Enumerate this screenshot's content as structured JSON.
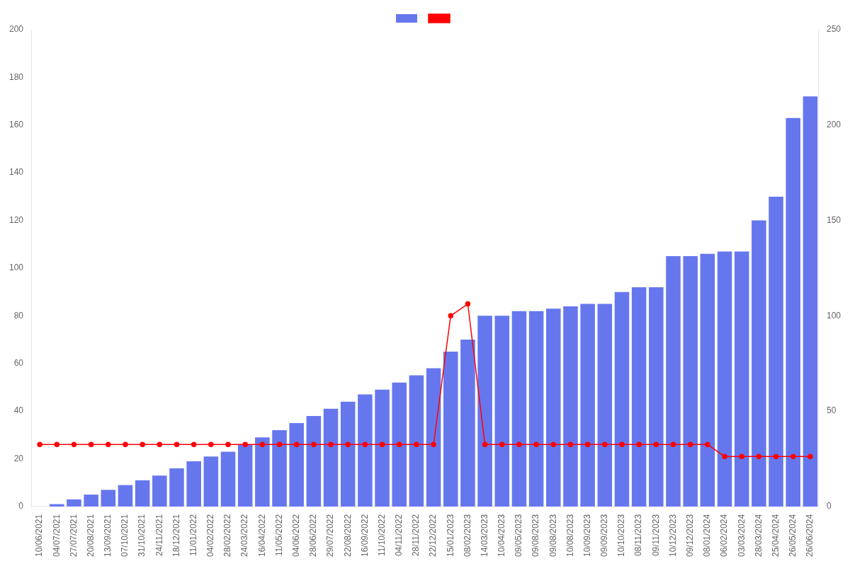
{
  "chart_data": {
    "type": "bar",
    "categories": [
      "10/06/2021",
      "04/07/2021",
      "27/07/2021",
      "20/08/2021",
      "13/09/2021",
      "07/10/2021",
      "31/10/2021",
      "24/11/2021",
      "18/12/2021",
      "11/01/2022",
      "04/02/2022",
      "28/02/2022",
      "24/03/2022",
      "16/04/2022",
      "11/05/2022",
      "04/06/2022",
      "28/06/2022",
      "29/07/2022",
      "22/08/2022",
      "16/09/2022",
      "11/10/2022",
      "04/11/2022",
      "28/11/2022",
      "22/12/2022",
      "15/01/2023",
      "08/02/2023",
      "14/03/2023",
      "10/04/2023",
      "09/05/2023",
      "09/08/2023",
      "09/08/2023",
      "10/08/2023",
      "10/09/2023",
      "09/09/2023",
      "10/10/2023",
      "08/11/2023",
      "09/11/2023",
      "10/12/2023",
      "09/12/2023",
      "08/01/2024",
      "06/02/2024",
      "03/03/2024",
      "28/03/2024",
      "25/04/2024",
      "26/05/2024",
      "26/06/2024"
    ],
    "series": [
      {
        "type": "bar",
        "color": "#6677ee",
        "values": [
          0,
          1,
          3,
          5,
          7,
          9,
          11,
          13,
          16,
          19,
          21,
          23,
          26,
          29,
          32,
          35,
          38,
          41,
          44,
          47,
          49,
          52,
          55,
          58,
          65,
          70,
          80,
          80,
          82,
          82,
          83,
          84,
          85,
          85,
          90,
          92,
          92,
          105,
          105,
          106,
          107,
          107,
          120,
          130,
          163,
          172
        ]
      },
      {
        "type": "line",
        "color": "#ff0000",
        "marker": "circle",
        "values": [
          26,
          26,
          26,
          26,
          26,
          26,
          26,
          26,
          26,
          26,
          26,
          26,
          26,
          26,
          26,
          26,
          26,
          26,
          26,
          26,
          26,
          26,
          26,
          26,
          80,
          85,
          26,
          26,
          26,
          26,
          26,
          26,
          26,
          26,
          26,
          26,
          26,
          26,
          26,
          26,
          21,
          21,
          21,
          21,
          21,
          21
        ]
      }
    ],
    "ylim": [
      0,
      200
    ],
    "yticks": [
      0,
      20,
      40,
      60,
      80,
      100,
      120,
      140,
      160,
      180,
      200
    ],
    "y2lim": [
      0,
      250
    ],
    "y2ticks": [
      0,
      50,
      100,
      150,
      200,
      250
    ],
    "grid": false,
    "legend": "top"
  }
}
